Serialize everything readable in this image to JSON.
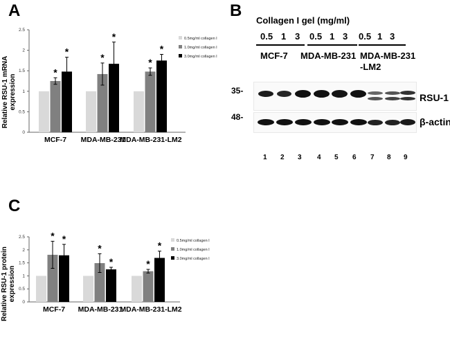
{
  "panels": {
    "a": "A",
    "b": "B",
    "c": "C"
  },
  "chart_data": [
    {
      "type": "bar",
      "panel": "A",
      "ylabel": "Relative RSU-1 mRNA expression",
      "ylabel_lines": [
        "Relative RSU-1 mRNA",
        "expression"
      ],
      "categories": [
        "MCF-7",
        "MDA-MB-231",
        "MDA-MB-231-LM2"
      ],
      "ylim": [
        0,
        2.5
      ],
      "yticks": [
        "0",
        "0.5",
        "1",
        "1.5",
        "2",
        "2.5"
      ],
      "series": [
        {
          "name": "0.5mg/ml collagen I",
          "color": "#d9d9d9",
          "values": [
            1.0,
            1.0,
            1.0
          ],
          "errors": [
            0,
            0,
            0
          ],
          "significant": [
            false,
            false,
            false
          ]
        },
        {
          "name": "1.0mg/ml collagen I",
          "color": "#808080",
          "values": [
            1.25,
            1.42,
            1.48
          ],
          "errors": [
            0.08,
            0.27,
            0.09
          ],
          "significant": [
            true,
            true,
            true
          ]
        },
        {
          "name": "3.0mg/ml collagen I",
          "color": "#000000",
          "values": [
            1.48,
            1.67,
            1.75
          ],
          "errors": [
            0.35,
            0.53,
            0.15
          ],
          "significant": [
            true,
            true,
            true
          ]
        }
      ],
      "significance_marker": "*"
    },
    {
      "type": "bar",
      "panel": "C",
      "ylabel": "Relative RSU-1 protein expression",
      "ylabel_lines": [
        "Relative RSU-1 protein",
        "expression"
      ],
      "categories": [
        "MCF-7",
        "MDA-MB-231",
        "MDA-MB-231-LM2"
      ],
      "ylim": [
        0,
        2.5
      ],
      "yticks": [
        "0",
        "0.5",
        "1",
        "1.5",
        "2",
        "2.5"
      ],
      "series": [
        {
          "name": "0.5mg/ml collagen I",
          "color": "#d9d9d9",
          "values": [
            1.0,
            1.0,
            1.0
          ],
          "errors": [
            0,
            0,
            0
          ],
          "significant": [
            false,
            false,
            false
          ]
        },
        {
          "name": "1.0mg/ml collagen I",
          "color": "#808080",
          "values": [
            1.81,
            1.49,
            1.18
          ],
          "errors": [
            0.52,
            0.36,
            0.07
          ],
          "significant": [
            true,
            true,
            true
          ]
        },
        {
          "name": "3.0mg/ml collagen I",
          "color": "#000000",
          "values": [
            1.79,
            1.25,
            1.69
          ],
          "errors": [
            0.42,
            0.08,
            0.26
          ],
          "significant": [
            true,
            true,
            true
          ]
        }
      ],
      "significance_marker": "*"
    }
  ],
  "blot": {
    "title": "Collagen I gel (mg/ml)",
    "concentrations": [
      "0.5",
      "1",
      "3",
      "0.5",
      "1",
      "3",
      "0.5",
      "1",
      "3"
    ],
    "cell_lines": [
      "MCF-7",
      "MDA-MB-231",
      "MDA-MB-231",
      "-LM2"
    ],
    "bands": [
      {
        "name": "RSU-1",
        "marker": "35-"
      },
      {
        "name": "β-actin",
        "marker": "48-"
      }
    ],
    "lane_numbers": [
      "1",
      "2",
      "3",
      "4",
      "5",
      "6",
      "7",
      "8",
      "9"
    ]
  }
}
